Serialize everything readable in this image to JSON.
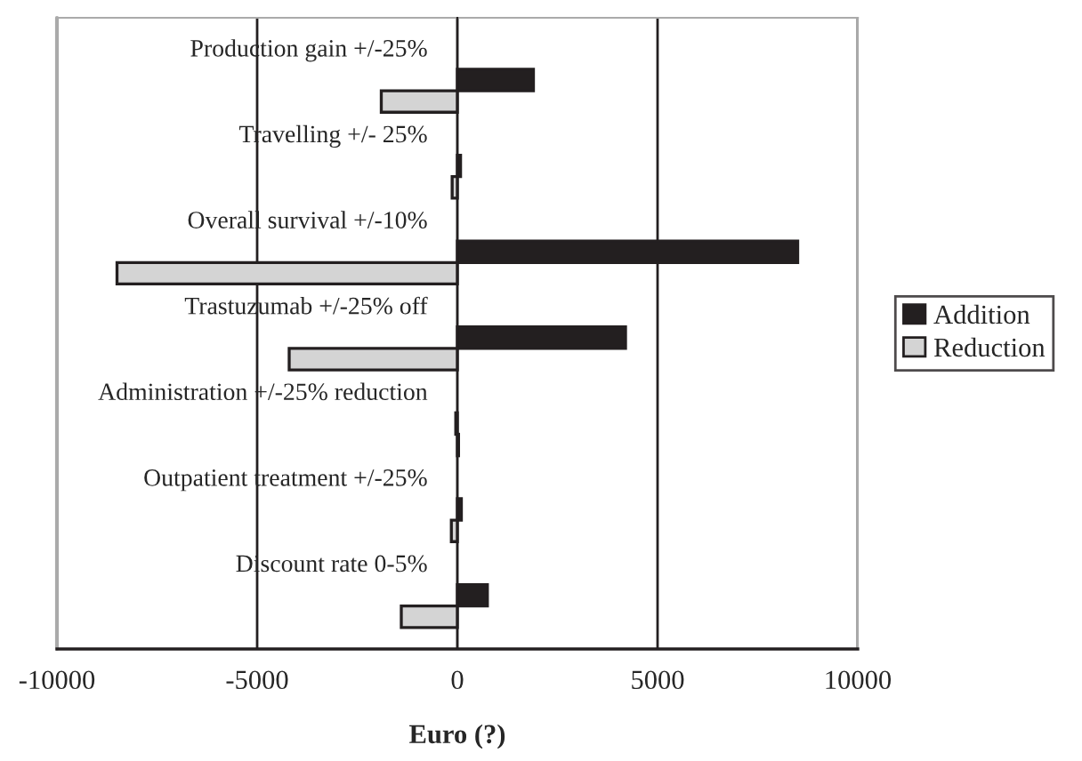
{
  "chart_data": {
    "type": "bar",
    "orientation": "horizontal",
    "xlabel": "Euro (?)",
    "categories": [
      "Production gain +/-25%",
      "Travelling +/- 25%",
      "Overall survival +/-10%",
      "Trastuzumab +/-25% off",
      "Administration +/-25% reduction",
      "Outpatient treatment +/-25%",
      "Discount rate 0-5%"
    ],
    "series": [
      {
        "name": "Addition",
        "color": "#231f20",
        "values": [
          1900,
          80,
          8500,
          4200,
          -40,
          100,
          750
        ]
      },
      {
        "name": "Reduction",
        "color": "#d4d4d4",
        "values": [
          -1900,
          -130,
          -8500,
          -4200,
          30,
          -150,
          -1400
        ]
      }
    ],
    "xlim": [
      -10000,
      10000
    ],
    "xticks": [
      -10000,
      -5000,
      0,
      5000,
      10000
    ],
    "grid": "x",
    "legend": "right"
  }
}
